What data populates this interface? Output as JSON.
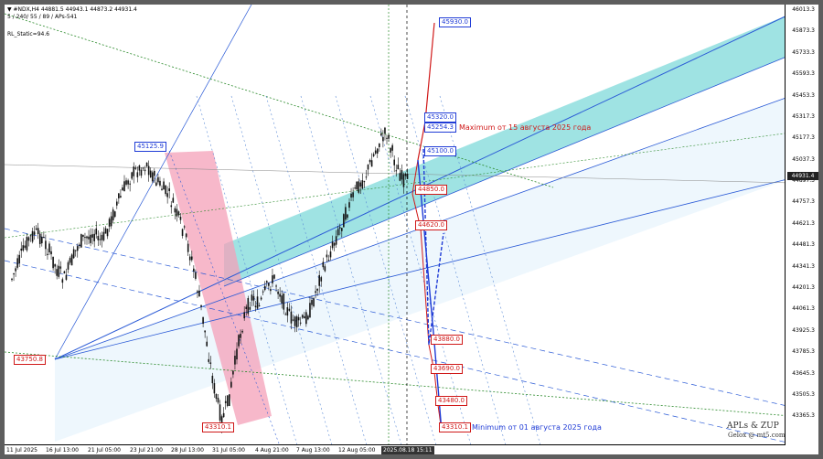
{
  "header": {
    "line1": "▼ #NDX,H4  44881.5 44943.1 44873.2 44931.4",
    "line2": "5 / 240/ 55 / 89 / APs-541",
    "line3": "RL_Static=94.6"
  },
  "colors": {
    "up_candle": "#111111",
    "channel_fill": "#7fdada",
    "pink_fill": "#f4a0b8",
    "blue_line": "#2a5ad6",
    "red_line": "#d01818",
    "green_dotted": "#2a8a2a"
  },
  "price_labels": [
    {
      "text": "45930.0",
      "color": "blue"
    },
    {
      "text": "45320.0",
      "color": "blue"
    },
    {
      "text": "45254.3",
      "color": "blue"
    },
    {
      "text": "45100.0",
      "color": "blue"
    },
    {
      "text": "44850.0",
      "color": "red"
    },
    {
      "text": "44620.0",
      "color": "red"
    },
    {
      "text": "43880.0",
      "color": "red"
    },
    {
      "text": "43690.0",
      "color": "red"
    },
    {
      "text": "43480.0",
      "color": "red"
    },
    {
      "text": "43310.1",
      "color": "red"
    },
    {
      "text": "45125.9",
      "color": "blue"
    },
    {
      "text": "43750.8",
      "color": "red"
    },
    {
      "text": "43310.1",
      "color": "red"
    }
  ],
  "annotations": {
    "max_text": "Maximum от 15 августа 2025 года",
    "min_text": "Minimum от 01 августа 2025 года"
  },
  "y_axis": [
    "46013.3",
    "45873.3",
    "45733.3",
    "45593.3",
    "45453.3",
    "45317.3",
    "45177.3",
    "45037.3",
    "44897.3",
    "44757.3",
    "44621.3",
    "44481.3",
    "44341.3",
    "44201.3",
    "44061.3",
    "43925.3",
    "43785.3",
    "43645.3",
    "43505.3",
    "43365.3"
  ],
  "current_price": "44931.4",
  "x_axis": [
    "11 Jul 2025",
    "16 Jul 13:00",
    "21 Jul 05:00",
    "23 Jul 21:00",
    "28 Jul 13:00",
    "31 Jul 05:00",
    "4 Aug 21:00",
    "7 Aug 13:00",
    "12 Aug 05:00"
  ],
  "time_badge": "2025.08.18 15:11",
  "watermark": {
    "line1": "APLs & ZUP",
    "line2": "Gelox @ mt5.com"
  }
}
